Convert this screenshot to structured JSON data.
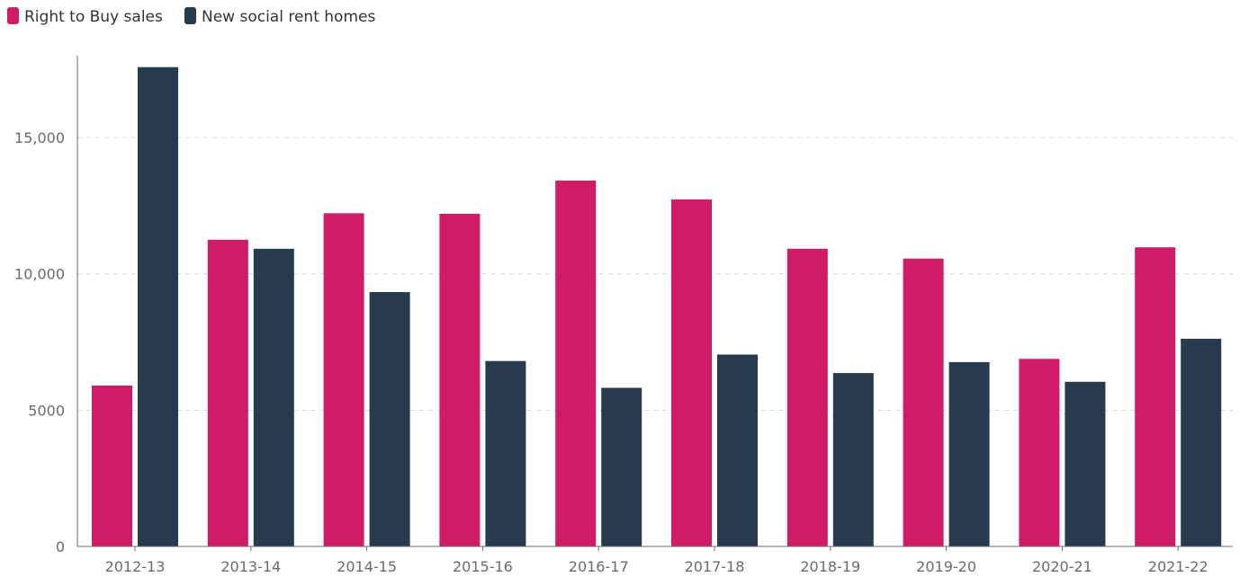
{
  "chart_data": {
    "type": "bar",
    "title": "",
    "xlabel": "",
    "ylabel": "",
    "categories": [
      "2012-13",
      "2013-14",
      "2014-15",
      "2015-16",
      "2016-17",
      "2017-18",
      "2018-19",
      "2019-20",
      "2020-21",
      "2021-22"
    ],
    "series": [
      {
        "name": "Right to Buy sales",
        "color": "#d01c66",
        "values": [
          5900,
          11250,
          12220,
          12200,
          13420,
          12730,
          10920,
          10560,
          6880,
          10970
        ]
      },
      {
        "name": "New social rent homes",
        "color": "#283a4d",
        "values": [
          17580,
          10920,
          9330,
          6800,
          5820,
          7040,
          6360,
          6760,
          6040,
          7620
        ]
      }
    ],
    "ylim": [
      0,
      18000
    ],
    "yticks": [
      0,
      5000,
      10000,
      15000
    ],
    "ytick_labels": [
      "0",
      "5000",
      "10,000",
      "15,000"
    ],
    "grid": "horizontal-dashed",
    "legend_position": "top-left"
  }
}
